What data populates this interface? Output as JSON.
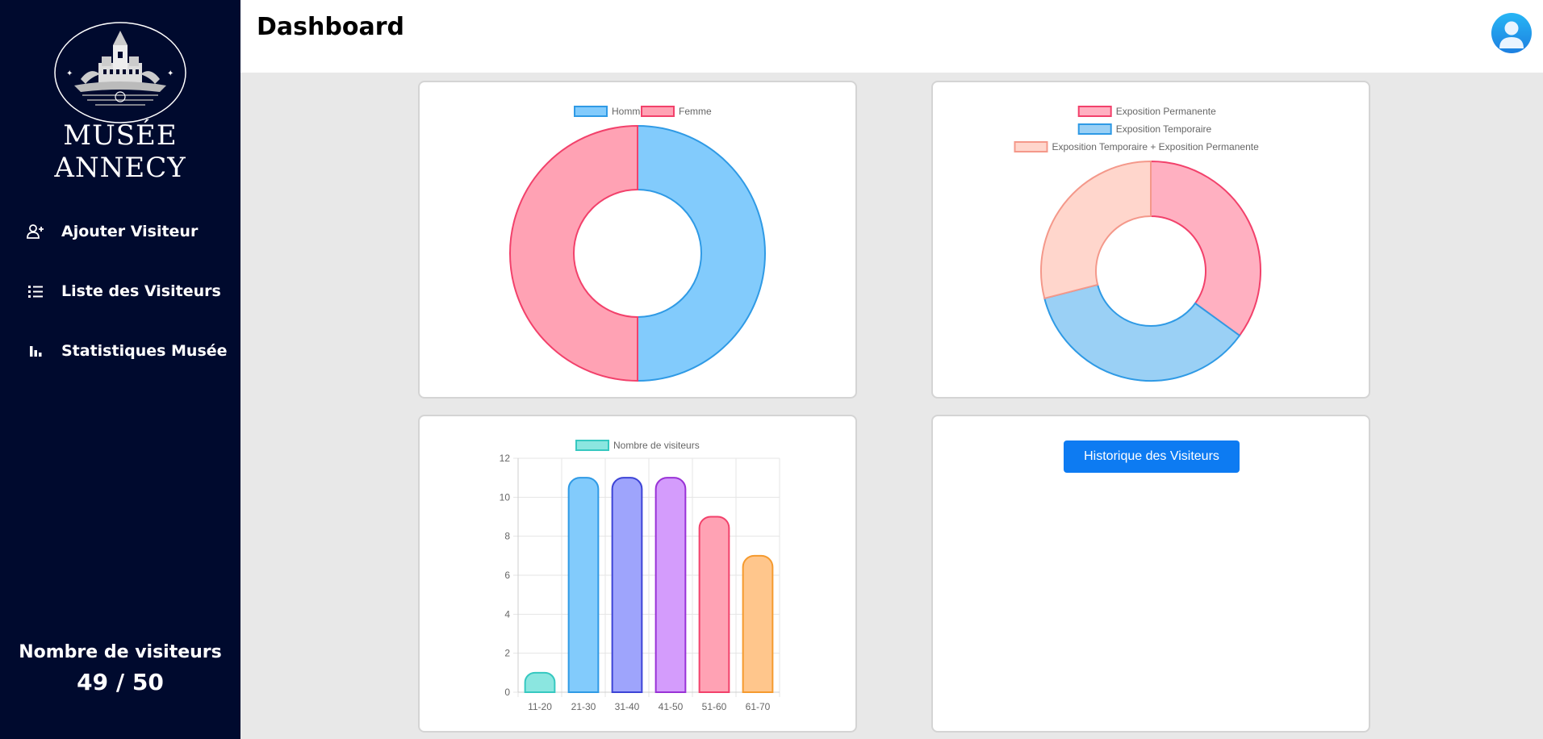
{
  "app": {
    "logo_text": "MUSÉE ANNECY",
    "page_title": "Dashboard"
  },
  "sidebar": {
    "items": [
      {
        "label": "Ajouter Visiteur",
        "icon": "add-user-icon"
      },
      {
        "label": "Liste des Visiteurs",
        "icon": "list-icon"
      },
      {
        "label": "Statistiques Musée",
        "icon": "bar-chart-icon"
      }
    ],
    "visitor_count_label": "Nombre de visiteurs",
    "visitor_count_value": "49 / 50"
  },
  "history_button_label": "Historique des Visiteurs",
  "colors": {
    "sidebar_bg": "#000a2e",
    "button_blue": "#0d7bf2"
  },
  "chart_data": [
    {
      "type": "pie",
      "variant": "doughnut",
      "labels": [
        "Homme",
        "Femme"
      ],
      "values": [
        50,
        50
      ],
      "colors": [
        {
          "fill": "#82cbfc",
          "stroke": "#2f9ae5"
        },
        {
          "fill": "#ffa2b4",
          "stroke": "#f2416b"
        }
      ],
      "legend": "top"
    },
    {
      "type": "pie",
      "variant": "doughnut",
      "labels": [
        "Exposition Permanente",
        "Exposition Temporaire",
        "Exposition Temporaire + Exposition Permanente"
      ],
      "values": [
        35,
        36,
        29
      ],
      "colors": [
        {
          "fill": "#ffb0c1",
          "stroke": "#f2416b"
        },
        {
          "fill": "#9ad0f5",
          "stroke": "#2f9ae5"
        },
        {
          "fill": "#ffd6cc",
          "stroke": "#f4988a"
        }
      ],
      "legend": "top"
    },
    {
      "type": "bar",
      "categories": [
        "11-20",
        "21-30",
        "31-40",
        "41-50",
        "51-60",
        "61-70"
      ],
      "series": [
        {
          "name": "Nombre de visiteurs",
          "values": [
            1,
            11,
            11,
            11,
            9,
            7
          ]
        }
      ],
      "bar_colors": [
        {
          "fill": "#8be6e0",
          "stroke": "#36c8c0"
        },
        {
          "fill": "#82cbfc",
          "stroke": "#2f9ae5"
        },
        {
          "fill": "#9ea4fc",
          "stroke": "#3d44d6"
        },
        {
          "fill": "#d49cfc",
          "stroke": "#9932d6"
        },
        {
          "fill": "#ffa2b4",
          "stroke": "#f2416b"
        },
        {
          "fill": "#ffc68c",
          "stroke": "#f59a2e"
        }
      ],
      "ylim": [
        0,
        12
      ],
      "yticks": [
        0,
        2,
        4,
        6,
        8,
        10,
        12
      ],
      "grid": true,
      "legend": "top"
    }
  ]
}
